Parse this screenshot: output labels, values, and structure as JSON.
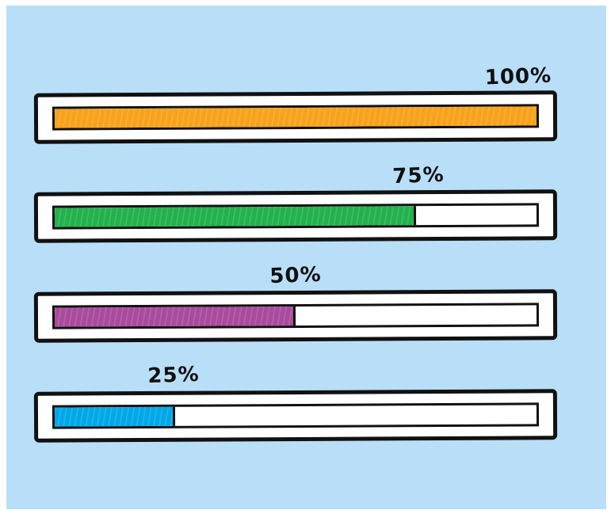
{
  "progress_bars": [
    {
      "label": "100%",
      "value": 1.0,
      "color": "#f7a21b"
    },
    {
      "label": "75%",
      "value": 0.75,
      "color": "#22b14c"
    },
    {
      "label": "50%",
      "value": 0.5,
      "color": "#a94a9c"
    },
    {
      "label": "25%",
      "value": 0.25,
      "color": "#00a8e8"
    }
  ],
  "background_color": "#b9def8"
}
